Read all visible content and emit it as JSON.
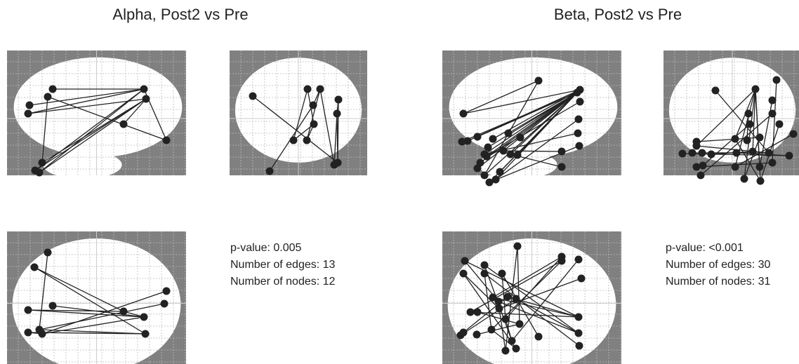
{
  "panels": [
    {
      "title": "Alpha, Post2 vs Pre",
      "stats": [
        "p-value: 0.005",
        "Number of edges: 13",
        "Number of nodes: 12"
      ]
    },
    {
      "title": "Beta, Post2 vs Pre",
      "stats": [
        "p-value: <0.001",
        "Number of edges: 30",
        "Number of nodes: 31"
      ]
    }
  ]
}
